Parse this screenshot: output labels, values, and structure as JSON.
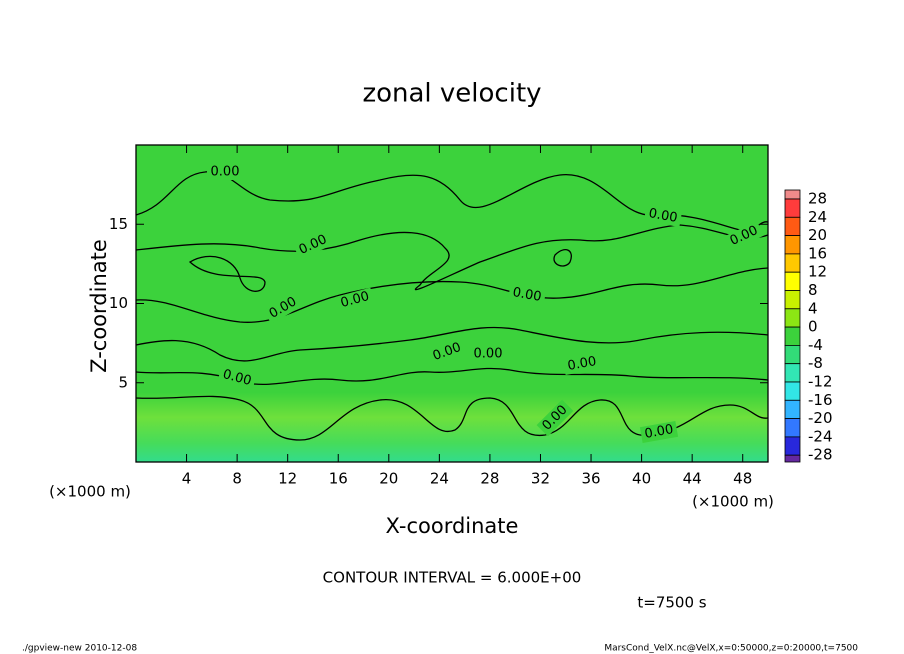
{
  "chart_data": {
    "type": "contour",
    "title": "zonal velocity",
    "x_label": "X-coordinate",
    "y_label": "Z-coordinate",
    "x_unit": "(×1000 m)",
    "y_unit": "(×1000 m)",
    "xlim": [
      0,
      50
    ],
    "xticks": [
      4,
      8,
      12,
      16,
      20,
      24,
      28,
      32,
      36,
      40,
      44,
      48
    ],
    "ylim": [
      0,
      20
    ],
    "yticks": [
      5,
      10,
      15
    ],
    "contours": {
      "values": [
        0
      ],
      "value_labels": [
        "0.00"
      ]
    },
    "colorbar": {
      "levels": [
        28,
        24,
        20,
        16,
        12,
        8,
        4,
        0,
        -4,
        -8,
        -12,
        -16,
        -20,
        -24,
        -28
      ],
      "colors": [
        "#f08a8a",
        "#ff3c3c",
        "#ff5a14",
        "#ff9600",
        "#ffc800",
        "#ffff00",
        "#c8f000",
        "#8ce614",
        "#3cd23c",
        "#32dc78",
        "#32e6b4",
        "#32e6e6",
        "#32b4ff",
        "#3278ff",
        "#2828dc",
        "#6428a0"
      ]
    },
    "annotation": "CONTOUR INTERVAL = 6.000E+00",
    "time_label": "t=7500 s",
    "footer_left": "./gpview-new   2010-12-08",
    "footer_right": "MarsCond_VelX.nc@VelX,x=0:50000,z=0:20000,t=7500"
  }
}
